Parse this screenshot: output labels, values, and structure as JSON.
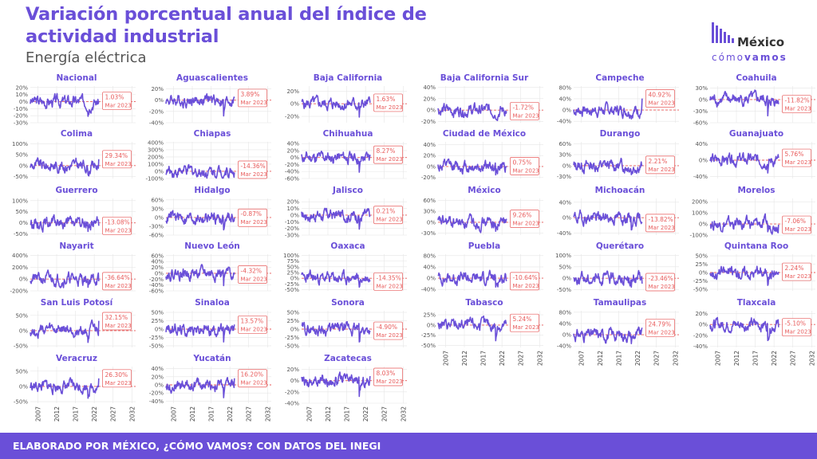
{
  "header": {
    "title": "Variación porcentual anual del índice de actividad industrial",
    "subtitle": "Energía eléctrica"
  },
  "logo": {
    "line1": "México",
    "line2_a": "cómo",
    "line2_b": "vamos"
  },
  "footer": {
    "text": "ELABORADO POR MÉXICO, ¿CÓMO VAMOS? CON DATOS DEL INEGI"
  },
  "colors": {
    "accent": "#6a4fd8",
    "line": "#6a4fd8",
    "reference": "#e85a5a",
    "grid": "#e6e6e6"
  },
  "chart_data": {
    "type": "line",
    "x_tick_labels": [
      "2007",
      "2012",
      "2017",
      "2022",
      "2027",
      "2032"
    ],
    "x_ticks": [
      2007,
      2012,
      2017,
      2022,
      2027,
      2032
    ],
    "xlim": [
      2005,
      2033
    ],
    "data_range": [
      2005,
      2023.2
    ],
    "reference_line_y": 0,
    "grid": true,
    "label_date": "Mar 2023",
    "panels": [
      {
        "name": "Nacional",
        "last_value": "1.03%",
        "last": 1.03,
        "y_ticks": [
          20,
          10,
          0,
          -10,
          -20,
          -30
        ],
        "y_tick_labels": [
          "20%",
          "10%",
          "0%",
          "-10%",
          "-20%",
          "-30%"
        ],
        "ylim": [
          -30,
          22
        ]
      },
      {
        "name": "Aguascalientes",
        "last_value": "3.89%",
        "last": 3.89,
        "y_ticks": [
          20,
          0,
          -20,
          -40
        ],
        "y_tick_labels": [
          "20%",
          "0%",
          "-20%",
          "-40%"
        ],
        "ylim": [
          -40,
          25
        ]
      },
      {
        "name": "Baja California",
        "last_value": "1.63%",
        "last": 1.63,
        "y_ticks": [
          20,
          0,
          -20
        ],
        "y_tick_labels": [
          "20%",
          "0%",
          "-20%"
        ],
        "ylim": [
          -30,
          28
        ]
      },
      {
        "name": "Baja California Sur",
        "last_value": "-1.72%",
        "last": -1.72,
        "y_ticks": [
          40,
          20,
          0,
          -20
        ],
        "y_tick_labels": [
          "40%",
          "20%",
          "0%",
          "-20%"
        ],
        "ylim": [
          -22,
          42
        ]
      },
      {
        "name": "Campeche",
        "last_value": "40.92%",
        "last": 40.92,
        "y_ticks": [
          80,
          40,
          0,
          -40
        ],
        "y_tick_labels": [
          "80%",
          "40%",
          "0%",
          "-40%"
        ],
        "ylim": [
          -45,
          85
        ]
      },
      {
        "name": "Coahuila",
        "last_value": "-11.82%",
        "last": -11.82,
        "y_ticks": [
          30,
          0,
          -30,
          -60
        ],
        "y_tick_labels": [
          "30%",
          "0%",
          "-30%",
          "-60%"
        ],
        "ylim": [
          -60,
          35
        ]
      },
      {
        "name": "Colima",
        "last_value": "29.34%",
        "last": 29.34,
        "y_ticks": [
          100,
          50,
          0,
          -50
        ],
        "y_tick_labels": [
          "100%",
          "50%",
          "0%",
          "-50%"
        ],
        "ylim": [
          -60,
          110
        ]
      },
      {
        "name": "Chiapas",
        "last_value": "-14.36%",
        "last": -14.36,
        "y_ticks": [
          400,
          300,
          200,
          100,
          0,
          -100
        ],
        "y_tick_labels": [
          "400%",
          "300%",
          "200%",
          "100%",
          "0%",
          "-100%"
        ],
        "ylim": [
          -100,
          410
        ]
      },
      {
        "name": "Chihuahua",
        "last_value": "8.27%",
        "last": 8.27,
        "y_ticks": [
          40,
          20,
          0,
          -20,
          -40,
          -60
        ],
        "y_tick_labels": [
          "40%",
          "20%",
          "0%",
          "-20%",
          "-40%",
          "-60%"
        ],
        "ylim": [
          -60,
          45
        ]
      },
      {
        "name": "Ciudad de México",
        "last_value": "0.75%",
        "last": 0.75,
        "y_ticks": [
          40,
          20,
          0,
          -20
        ],
        "y_tick_labels": [
          "40%",
          "20%",
          "0%",
          "-20%"
        ],
        "ylim": [
          -22,
          45
        ]
      },
      {
        "name": "Durango",
        "last_value": "2.21%",
        "last": 2.21,
        "y_ticks": [
          60,
          30,
          0,
          -30
        ],
        "y_tick_labels": [
          "60%",
          "30%",
          "0%",
          "-30%"
        ],
        "ylim": [
          -35,
          65
        ]
      },
      {
        "name": "Guanajuato",
        "last_value": "5.76%",
        "last": 5.76,
        "y_ticks": [
          40,
          0,
          -40
        ],
        "y_tick_labels": [
          "40%",
          "0%",
          "-40%"
        ],
        "ylim": [
          -45,
          45
        ]
      },
      {
        "name": "Guerrero",
        "last_value": "-13.08%",
        "last": -13.08,
        "y_ticks": [
          100,
          50,
          0,
          -50
        ],
        "y_tick_labels": [
          "100%",
          "50%",
          "0%",
          "-50%"
        ],
        "ylim": [
          -55,
          110
        ]
      },
      {
        "name": "Hidalgo",
        "last_value": "-0.87%",
        "last": -0.87,
        "y_ticks": [
          60,
          30,
          0,
          -30,
          -60
        ],
        "y_tick_labels": [
          "60%",
          "30%",
          "0%",
          "-30%",
          "-60%"
        ],
        "ylim": [
          -60,
          65
        ]
      },
      {
        "name": "Jalisco",
        "last_value": "0.21%",
        "last": 0.21,
        "y_ticks": [
          20,
          10,
          0,
          -10,
          -20,
          -30
        ],
        "y_tick_labels": [
          "20%",
          "10%",
          "0%",
          "-10%",
          "-20%",
          "-30%"
        ],
        "ylim": [
          -30,
          25
        ]
      },
      {
        "name": "México",
        "last_value": "9.26%",
        "last": 9.26,
        "y_ticks": [
          60,
          30,
          0,
          -30
        ],
        "y_tick_labels": [
          "60%",
          "30%",
          "0%",
          "-30%"
        ],
        "ylim": [
          -35,
          65
        ]
      },
      {
        "name": "Michoacán",
        "last_value": "-13.82%",
        "last": -13.82,
        "y_ticks": [
          40,
          0,
          -40
        ],
        "y_tick_labels": [
          "40%",
          "0%",
          "-40%"
        ],
        "ylim": [
          -45,
          50
        ]
      },
      {
        "name": "Morelos",
        "last_value": "-7.06%",
        "last": -7.06,
        "y_ticks": [
          200,
          100,
          0,
          -100
        ],
        "y_tick_labels": [
          "200%",
          "100%",
          "0%",
          "-100%"
        ],
        "ylim": [
          -100,
          230
        ]
      },
      {
        "name": "Nayarit",
        "last_value": "-36.64%",
        "last": -36.64,
        "y_ticks": [
          400,
          200,
          0,
          -200
        ],
        "y_tick_labels": [
          "400%",
          "200%",
          "0%",
          "-200%"
        ],
        "ylim": [
          -200,
          420
        ]
      },
      {
        "name": "Nuevo León",
        "last_value": "-4.32%",
        "last": -4.32,
        "y_ticks": [
          60,
          40,
          20,
          0,
          -20,
          -40,
          -60
        ],
        "y_tick_labels": [
          "60%",
          "40%",
          "20%",
          "0%",
          "-20%",
          "-40%",
          "-60%"
        ],
        "ylim": [
          -60,
          65
        ]
      },
      {
        "name": "Oaxaca",
        "last_value": "-14.35%",
        "last": -14.35,
        "y_ticks": [
          100,
          75,
          50,
          25,
          0,
          -25,
          -50
        ],
        "y_tick_labels": [
          "100%",
          "75%",
          "50%",
          "25%",
          "0%",
          "-25%",
          "-50%"
        ],
        "ylim": [
          -55,
          105
        ]
      },
      {
        "name": "Puebla",
        "last_value": "-10.64%",
        "last": -10.64,
        "y_ticks": [
          80,
          40,
          0,
          -40
        ],
        "y_tick_labels": [
          "80%",
          "40%",
          "0%",
          "-40%"
        ],
        "ylim": [
          -45,
          85
        ]
      },
      {
        "name": "Querétaro",
        "last_value": "-23.46%",
        "last": -23.46,
        "y_ticks": [
          100,
          50,
          0,
          -50
        ],
        "y_tick_labels": [
          "100%",
          "50%",
          "0%",
          "-50%"
        ],
        "ylim": [
          -55,
          105
        ]
      },
      {
        "name": "Quintana Roo",
        "last_value": "2.24%",
        "last": 2.24,
        "y_ticks": [
          50,
          25,
          0,
          -25,
          -50
        ],
        "y_tick_labels": [
          "50%",
          "25%",
          "0%",
          "-25%",
          "-50%"
        ],
        "ylim": [
          -55,
          55
        ]
      },
      {
        "name": "San Luis Potosí",
        "last_value": "32.15%",
        "last": 32.15,
        "y_ticks": [
          50,
          0,
          -50
        ],
        "y_tick_labels": [
          "50%",
          "0%",
          "-50%"
        ],
        "ylim": [
          -55,
          65
        ]
      },
      {
        "name": "Sinaloa",
        "last_value": "13.57%",
        "last": 13.57,
        "y_ticks": [
          50,
          25,
          0,
          -25,
          -50
        ],
        "y_tick_labels": [
          "50%",
          "25%",
          "0%",
          "-25%",
          "-50%"
        ],
        "ylim": [
          -55,
          55
        ]
      },
      {
        "name": "Sonora",
        "last_value": "-4.90%",
        "last": -4.9,
        "y_ticks": [
          50,
          25,
          0,
          -25,
          -50
        ],
        "y_tick_labels": [
          "50%",
          "25%",
          "0%",
          "-25%",
          "-50%"
        ],
        "ylim": [
          -55,
          55
        ]
      },
      {
        "name": "Tabasco",
        "last_value": "5.24%",
        "last": 5.24,
        "y_ticks": [
          25,
          0,
          -25,
          -50
        ],
        "y_tick_labels": [
          "25%",
          "0%",
          "-25%",
          "-50%"
        ],
        "ylim": [
          -55,
          35
        ]
      },
      {
        "name": "Tamaulipas",
        "last_value": "24.79%",
        "last": 24.79,
        "y_ticks": [
          80,
          40,
          0,
          -40
        ],
        "y_tick_labels": [
          "80%",
          "40%",
          "0%",
          "-40%"
        ],
        "ylim": [
          -45,
          85
        ]
      },
      {
        "name": "Tlaxcala",
        "last_value": "-5.10%",
        "last": -5.1,
        "y_ticks": [
          20,
          0,
          -20,
          -40
        ],
        "y_tick_labels": [
          "20%",
          "0%",
          "-20%",
          "-40%"
        ],
        "ylim": [
          -42,
          25
        ]
      },
      {
        "name": "Veracruz",
        "last_value": "26.30%",
        "last": 26.3,
        "y_ticks": [
          50,
          0,
          -50
        ],
        "y_tick_labels": [
          "50%",
          "0%",
          "-50%"
        ],
        "ylim": [
          -55,
          65
        ]
      },
      {
        "name": "Yucatán",
        "last_value": "16.20%",
        "last": 16.2,
        "y_ticks": [
          40,
          20,
          0,
          -20,
          -40
        ],
        "y_tick_labels": [
          "40%",
          "20%",
          "0%",
          "-20%",
          "-40%"
        ],
        "ylim": [
          -45,
          45
        ]
      },
      {
        "name": "Zacatecas",
        "last_value": "8.03%",
        "last": 8.03,
        "y_ticks": [
          20,
          0,
          -20,
          -40
        ],
        "y_tick_labels": [
          "20%",
          "0%",
          "-20%",
          "-40%"
        ],
        "ylim": [
          -40,
          25
        ]
      }
    ]
  }
}
